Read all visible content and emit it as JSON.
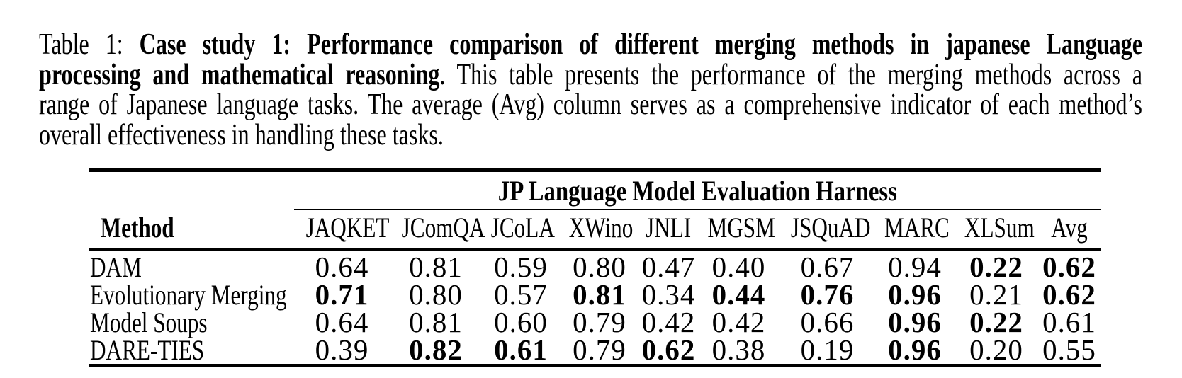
{
  "colors": {
    "text": "#000000",
    "background": "#ffffff",
    "rule": "#000000"
  },
  "caption": {
    "lines": [
      {
        "justify": true,
        "segments": [
          {
            "text": "Table 1: ",
            "bold": false
          },
          {
            "text": "Case study 1: Performance comparison of different merging methods in japanese Language",
            "bold": true
          }
        ]
      },
      {
        "justify": true,
        "segments": [
          {
            "text": "processing and mathematical reasoning",
            "bold": true
          },
          {
            "text": ". This table presents the performance of the merging methods across a",
            "bold": false
          }
        ]
      },
      {
        "justify": true,
        "segments": [
          {
            "text": "range of Japanese language tasks. The average (Avg) column serves as a comprehensive indicator of each method’s",
            "bold": false
          }
        ]
      },
      {
        "justify": false,
        "segments": [
          {
            "text": "overall effectiveness in handling these tasks.",
            "bold": false
          }
        ]
      }
    ]
  },
  "table": {
    "group_header": "JP Language Model Evaluation Harness",
    "method_column_header": "Method",
    "columns": [
      "JAQKET",
      "JComQA",
      "JCoLA",
      "XWino",
      "JNLI",
      "MGSM",
      "JSQuAD",
      "MARC",
      "XLSum",
      "Avg"
    ],
    "rows": [
      {
        "method": "DAM",
        "values": [
          {
            "v": "0.64",
            "b": false
          },
          {
            "v": "0.81",
            "b": false
          },
          {
            "v": "0.59",
            "b": false
          },
          {
            "v": "0.80",
            "b": false
          },
          {
            "v": "0.47",
            "b": false
          },
          {
            "v": "0.40",
            "b": false
          },
          {
            "v": "0.67",
            "b": false
          },
          {
            "v": "0.94",
            "b": false
          },
          {
            "v": "0.22",
            "b": true
          },
          {
            "v": "0.62",
            "b": true
          }
        ]
      },
      {
        "method": "Evolutionary Merging",
        "values": [
          {
            "v": "0.71",
            "b": true
          },
          {
            "v": "0.80",
            "b": false
          },
          {
            "v": "0.57",
            "b": false
          },
          {
            "v": "0.81",
            "b": true
          },
          {
            "v": "0.34",
            "b": false
          },
          {
            "v": "0.44",
            "b": true
          },
          {
            "v": "0.76",
            "b": true
          },
          {
            "v": "0.96",
            "b": true
          },
          {
            "v": "0.21",
            "b": false
          },
          {
            "v": "0.62",
            "b": true
          }
        ]
      },
      {
        "method": "Model Soups",
        "values": [
          {
            "v": "0.64",
            "b": false
          },
          {
            "v": "0.81",
            "b": false
          },
          {
            "v": "0.60",
            "b": false
          },
          {
            "v": "0.79",
            "b": false
          },
          {
            "v": "0.42",
            "b": false
          },
          {
            "v": "0.42",
            "b": false
          },
          {
            "v": "0.66",
            "b": false
          },
          {
            "v": "0.96",
            "b": true
          },
          {
            "v": "0.22",
            "b": true
          },
          {
            "v": "0.61",
            "b": false
          }
        ]
      },
      {
        "method": "DARE-TIES",
        "values": [
          {
            "v": "0.39",
            "b": false
          },
          {
            "v": "0.82",
            "b": true
          },
          {
            "v": "0.61",
            "b": true
          },
          {
            "v": "0.79",
            "b": false
          },
          {
            "v": "0.62",
            "b": true
          },
          {
            "v": "0.38",
            "b": false
          },
          {
            "v": "0.19",
            "b": false
          },
          {
            "v": "0.96",
            "b": true
          },
          {
            "v": "0.20",
            "b": false
          },
          {
            "v": "0.55",
            "b": false
          }
        ]
      }
    ]
  }
}
